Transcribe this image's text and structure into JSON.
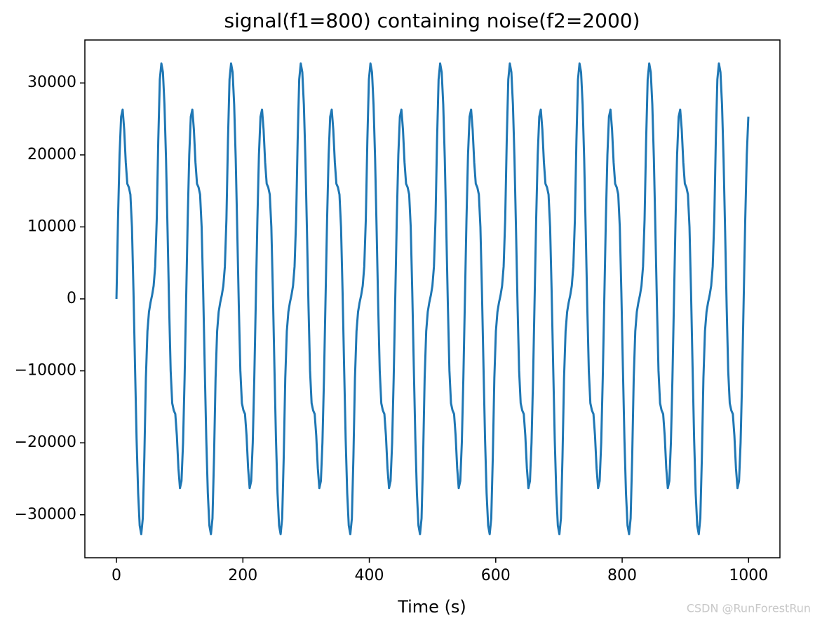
{
  "chart_data": {
    "type": "line",
    "title": "signal(f1=800) containing noise(f2=2000)",
    "x_label": "Time (s)",
    "watermark": "CSDN @RunForestRun",
    "color": "#1f77b4",
    "xlim": [
      -49.98,
      1049.58
    ],
    "ylim": [
      -35970,
      35970
    ],
    "xticks": [
      0,
      200,
      400,
      600,
      800,
      1000
    ],
    "yticks": [
      {
        "value": -30000,
        "label": "−30000"
      },
      {
        "value": -20000,
        "label": "−20000"
      },
      {
        "value": -10000,
        "label": "−10000"
      },
      0,
      10000,
      20000,
      30000
    ],
    "x": [
      0,
      2.45,
      4.9,
      7.35,
      9.8,
      12.25,
      14.7,
      17.15,
      19.6,
      22.05,
      24.5,
      26.95,
      29.4,
      31.85,
      34.3,
      36.75,
      39.2,
      41.65,
      44.1,
      46.55,
      49,
      51.45,
      53.9,
      56.35,
      58.8,
      61.25,
      63.7,
      66.15,
      68.6,
      71.05,
      73.5,
      75.95,
      78.4,
      80.85,
      83.3,
      85.75,
      88.2,
      90.65,
      93.1,
      95.55,
      98,
      100.45,
      102.9,
      105.35,
      107.8,
      110.25,
      112.7,
      115.15,
      117.6,
      120.05,
      122.5,
      124.95,
      127.4,
      129.85,
      132.3,
      134.75,
      137.2,
      139.65,
      142.1,
      144.55,
      147,
      149.45,
      151.9,
      154.35,
      156.8,
      159.25,
      161.7,
      164.15,
      166.6,
      169.05,
      171.5,
      173.95,
      176.4,
      178.85,
      181.3,
      183.75,
      186.2,
      188.65,
      191.1,
      193.55,
      196,
      198.45,
      200.9,
      203.35,
      205.8,
      208.25,
      210.7,
      213.15,
      215.6,
      218.05,
      220.5,
      222.95,
      225.4,
      227.85,
      230.3,
      232.75,
      235.2,
      237.65,
      240.1,
      242.55,
      245,
      247.45,
      249.9,
      252.35,
      254.8,
      257.25,
      259.7,
      262.15,
      264.6,
      267.05,
      269.5,
      271.95,
      274.4,
      276.85,
      279.3,
      281.75,
      284.2,
      286.65,
      289.1,
      291.55,
      294,
      296.45,
      298.9,
      301.35,
      303.8,
      306.25,
      308.7,
      311.15,
      313.6,
      316.05,
      318.5,
      320.95,
      323.4,
      325.85,
      328.3,
      330.75,
      333.2,
      335.65,
      338.1,
      340.55,
      343,
      345.45,
      347.9,
      350.35,
      352.8,
      355.25,
      357.7,
      360.15,
      362.6,
      365.05,
      367.5,
      369.95,
      372.4,
      374.85,
      377.3,
      379.75,
      382.2,
      384.65,
      387.1,
      389.55,
      392,
      394.45,
      396.9,
      399.35,
      401.8,
      404.25,
      406.7,
      409.15,
      411.6,
      414.05,
      416.5,
      418.95,
      421.4,
      423.85,
      426.3,
      428.75,
      431.2,
      433.65,
      436.1,
      438.55,
      441,
      443.45,
      445.9,
      448.35,
      450.8,
      453.25,
      455.7,
      458.15,
      460.6,
      463.05,
      465.5,
      467.95,
      470.4,
      472.85,
      475.3,
      477.75,
      480.2,
      482.65,
      485.1,
      487.55,
      490,
      492.45,
      494.9,
      497.35,
      499.8,
      502.25,
      504.7,
      507.15,
      509.6,
      512.05,
      514.5,
      516.95,
      519.4,
      521.85,
      524.3,
      526.75,
      529.2,
      531.65,
      534.1,
      536.55,
      539,
      541.45,
      543.9,
      546.35,
      548.8,
      551.25,
      553.7,
      556.15,
      558.6,
      561.05,
      563.5,
      565.95,
      568.4,
      570.85,
      573.3,
      575.75,
      578.2,
      580.65,
      583.1,
      585.55,
      588,
      590.45,
      592.9,
      595.35,
      597.8,
      600.25,
      602.7,
      605.15,
      607.6,
      610.05,
      612.5,
      614.95,
      617.4,
      619.85,
      622.3,
      624.75,
      627.2,
      629.65,
      632.1,
      634.55,
      637,
      639.45,
      641.9,
      644.35,
      646.8,
      649.25,
      651.7,
      654.15,
      656.6,
      659.05,
      661.5,
      663.95,
      666.4,
      668.85,
      671.3,
      673.75,
      676.2,
      678.65,
      681.1,
      683.55,
      686,
      688.45,
      690.9,
      693.35,
      695.8,
      698.25,
      700.7,
      703.15,
      705.6,
      708.05,
      710.5,
      712.95,
      715.4,
      717.85,
      720.3,
      722.75,
      725.2,
      727.65,
      730.1,
      732.55,
      735,
      737.45,
      739.9,
      742.35,
      744.8,
      747.25,
      749.7,
      752.15,
      754.6,
      757.05,
      759.5,
      761.95,
      764.4,
      766.85,
      769.3,
      771.75,
      774.2,
      776.65,
      779.1,
      781.55,
      784,
      786.45,
      788.9,
      791.35,
      793.8,
      796.25,
      798.7,
      801.15,
      803.6,
      806.05,
      808.5,
      810.95,
      813.4,
      815.85,
      818.3,
      820.75,
      823.2,
      825.65,
      828.1,
      830.55,
      833,
      835.45,
      837.9,
      840.35,
      842.8,
      845.25,
      847.7,
      850.15,
      852.6,
      855.05,
      857.5,
      859.95,
      862.4,
      864.85,
      867.3,
      869.75,
      872.2,
      874.65,
      877.1,
      879.55,
      882,
      884.45,
      886.9,
      889.35,
      891.8,
      894.25,
      896.7,
      899.15,
      901.6,
      904.05,
      906.5,
      908.95,
      911.4,
      913.85,
      916.3,
      918.75,
      921.2,
      923.65,
      926.1,
      928.55,
      931,
      933.45,
      935.9,
      938.35,
      940.8,
      943.25,
      945.7,
      948.15,
      950.6,
      953.05,
      955.5,
      957.95,
      960.4,
      962.85,
      965.3,
      967.75,
      970.2,
      972.65,
      975.1,
      977.55,
      980,
      982.45,
      984.9,
      987.35,
      989.8,
      992.25,
      994.7,
      997.15,
      999.6
    ],
    "values": [
      0,
      11000,
      20000,
      25300,
      26300,
      23500,
      19000,
      16000,
      15500,
      14500,
      10000,
      1000,
      -9500,
      -19500,
      -27000,
      -31500,
      -32700,
      -30500,
      -22000,
      -11000,
      -4500,
      -1800,
      -500,
      500,
      1800,
      4500,
      11000,
      22000,
      30500,
      32700,
      31500,
      27000,
      19500,
      9500,
      -1000,
      -10000,
      -14500,
      -15500,
      -16000,
      -19000,
      -23500,
      -26300,
      -25300,
      -20000,
      -11000,
      0,
      11000,
      20000,
      25300,
      26300,
      23500,
      19000,
      16000,
      15500,
      14500,
      10000,
      1000,
      -9500,
      -19500,
      -27000,
      -31500,
      -32700,
      -30500,
      -22000,
      -11000,
      -4500,
      -1800,
      -500,
      500,
      1800,
      4500,
      11000,
      22000,
      30500,
      32700,
      31500,
      27000,
      19500,
      9500,
      -1000,
      -10000,
      -14500,
      -15500,
      -16000,
      -19000,
      -23500,
      -26300,
      -25300,
      -20000,
      -11000,
      0,
      11000,
      20000,
      25300,
      26300,
      23500,
      19000,
      16000,
      15500,
      14500,
      10000,
      1000,
      -9500,
      -19500,
      -27000,
      -31500,
      -32700,
      -30500,
      -22000,
      -11000,
      -4500,
      -1800,
      -500,
      500,
      1800,
      4500,
      11000,
      22000,
      30500,
      32700,
      31500,
      27000,
      19500,
      9500,
      -1000,
      -10000,
      -14500,
      -15500,
      -16000,
      -19000,
      -23500,
      -26300,
      -25300,
      -20000,
      -11000,
      0,
      11000,
      20000,
      25300,
      26300,
      23500,
      19000,
      16000,
      15500,
      14500,
      10000,
      1000,
      -9500,
      -19500,
      -27000,
      -31500,
      -32700,
      -30500,
      -22000,
      -11000,
      -4500,
      -1800,
      -500,
      500,
      1800,
      4500,
      11000,
      22000,
      30500,
      32700,
      31500,
      27000,
      19500,
      9500,
      -1000,
      -10000,
      -14500,
      -15500,
      -16000,
      -19000,
      -23500,
      -26300,
      -25300,
      -20000,
      -11000,
      0,
      11000,
      20000,
      25300,
      26300,
      23500,
      19000,
      16000,
      15500,
      14500,
      10000,
      1000,
      -9500,
      -19500,
      -27000,
      -31500,
      -32700,
      -30500,
      -22000,
      -11000,
      -4500,
      -1800,
      -500,
      500,
      1800,
      4500,
      11000,
      22000,
      30500,
      32700,
      31500,
      27000,
      19500,
      9500,
      -1000,
      -10000,
      -14500,
      -15500,
      -16000,
      -19000,
      -23500,
      -26300,
      -25300,
      -20000,
      -11000,
      0,
      11000,
      20000,
      25300,
      26300,
      23500,
      19000,
      16000,
      15500,
      14500,
      10000,
      1000,
      -9500,
      -19500,
      -27000,
      -31500,
      -32700,
      -30500,
      -22000,
      -11000,
      -4500,
      -1800,
      -500,
      500,
      1800,
      4500,
      11000,
      22000,
      30500,
      32700,
      31500,
      27000,
      19500,
      9500,
      -1000,
      -10000,
      -14500,
      -15500,
      -16000,
      -19000,
      -23500,
      -26300,
      -25300,
      -20000,
      -11000,
      0,
      11000,
      20000,
      25300,
      26300,
      23500,
      19000,
      16000,
      15500,
      14500,
      10000,
      1000,
      -9500,
      -19500,
      -27000,
      -31500,
      -32700,
      -30500,
      -22000,
      -11000,
      -4500,
      -1800,
      -500,
      500,
      1800,
      4500,
      11000,
      22000,
      30500,
      32700,
      31500,
      27000,
      19500,
      9500,
      -1000,
      -10000,
      -14500,
      -15500,
      -16000,
      -19000,
      -23500,
      -26300,
      -25300,
      -20000,
      -11000,
      0,
      11000,
      20000,
      25300,
      26300,
      23500,
      19000,
      16000,
      15500,
      14500,
      10000,
      1000,
      -9500,
      -19500,
      -27000,
      -31500,
      -32700,
      -30500,
      -22000,
      -11000,
      -4500,
      -1800,
      -500,
      500,
      1800,
      4500,
      11000,
      22000,
      30500,
      32700,
      31500,
      27000,
      19500,
      9500,
      -1000,
      -10000,
      -14500,
      -15500,
      -16000,
      -19000,
      -23500,
      -26300,
      -25300,
      -20000,
      -11000,
      0,
      11000,
      20000,
      25300,
      26300,
      23500,
      19000,
      16000,
      15500,
      14500,
      10000,
      1000,
      -9500,
      -19500,
      -27000,
      -31500,
      -32700,
      -30500,
      -22000,
      -11000,
      -4500,
      -1800,
      -500,
      500,
      1800,
      4500,
      11000,
      22000,
      30500,
      32700,
      31500,
      27000,
      19500,
      9500,
      -1000,
      -10000,
      -14500,
      -15500,
      -16000,
      -19000,
      -23500,
      -26300,
      -25300,
      -20000,
      -11000,
      0,
      11000,
      20000,
      25300
    ]
  }
}
